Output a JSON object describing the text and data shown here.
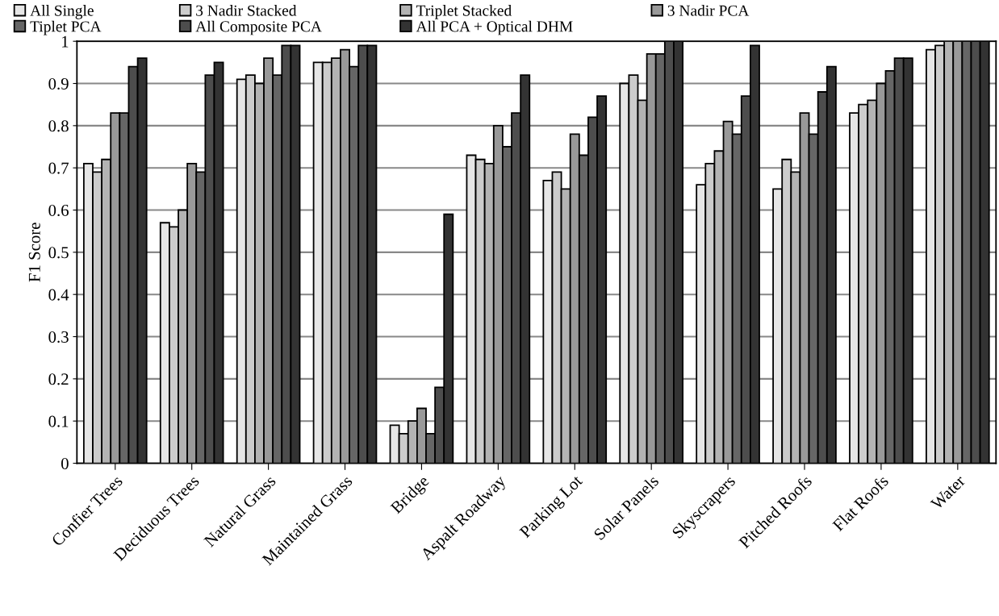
{
  "chart_data": {
    "type": "bar",
    "ylabel": "F1 Score",
    "categories": [
      "Confier Trees",
      "Deciduous Trees",
      "Natural Grass",
      "Maintained Grass",
      "Bridge",
      "Aspalt Roadway",
      "Parking Lot",
      "Solar Panels",
      "Skyscrapers",
      "Pitched Roofs",
      "Flat Roofs",
      "Water"
    ],
    "series": [
      {
        "name": "All Single",
        "color": "#e6e6e6",
        "values": [
          0.71,
          0.57,
          0.91,
          0.95,
          0.09,
          0.73,
          0.67,
          0.9,
          0.66,
          0.65,
          0.83,
          0.98
        ]
      },
      {
        "name": "3 Nadir Stacked",
        "color": "#cccccc",
        "values": [
          0.69,
          0.56,
          0.92,
          0.95,
          0.07,
          0.72,
          0.69,
          0.92,
          0.71,
          0.72,
          0.85,
          0.99
        ]
      },
      {
        "name": "Triplet Stacked",
        "color": "#b3b3b3",
        "values": [
          0.72,
          0.6,
          0.9,
          0.96,
          0.1,
          0.71,
          0.65,
          0.86,
          0.74,
          0.69,
          0.86,
          1.0
        ]
      },
      {
        "name": "3 Nadir PCA",
        "color": "#999999",
        "values": [
          0.83,
          0.71,
          0.96,
          0.98,
          0.13,
          0.8,
          0.78,
          0.97,
          0.81,
          0.83,
          0.9,
          1.0
        ]
      },
      {
        "name": "Tiplet PCA",
        "color": "#666666",
        "values": [
          0.83,
          0.69,
          0.92,
          0.94,
          0.07,
          0.75,
          0.73,
          0.97,
          0.78,
          0.78,
          0.93,
          1.0
        ]
      },
      {
        "name": "All Composite PCA",
        "color": "#4d4d4d",
        "values": [
          0.94,
          0.92,
          0.99,
          0.99,
          0.18,
          0.83,
          0.82,
          1.0,
          0.87,
          0.88,
          0.96,
          1.0
        ]
      },
      {
        "name": "All PCA + Optical DHM",
        "color": "#333333",
        "values": [
          0.96,
          0.95,
          0.99,
          0.99,
          0.59,
          0.92,
          0.87,
          1.0,
          0.99,
          0.94,
          0.96,
          1.0
        ]
      }
    ],
    "ylim": [
      0,
      1
    ],
    "yticks": [
      0,
      0.1,
      0.2,
      0.3,
      0.4,
      0.5,
      0.6,
      0.7,
      0.8,
      0.9,
      1
    ],
    "grid": "y",
    "legend": "top"
  }
}
